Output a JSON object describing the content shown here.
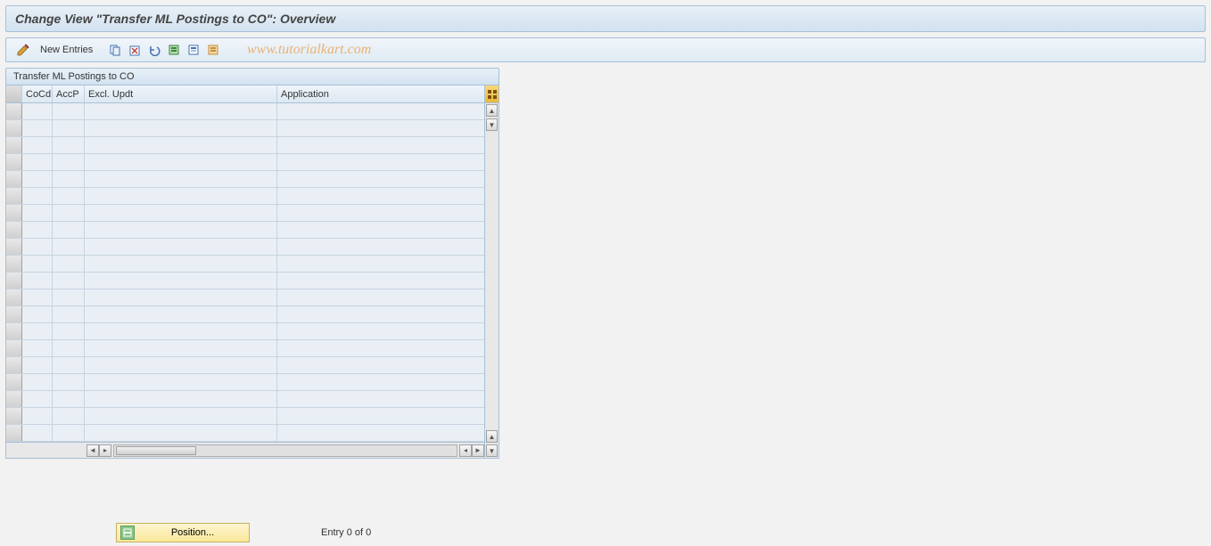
{
  "titlebar": {
    "text": "Change View \"Transfer ML Postings to CO\": Overview"
  },
  "toolbar": {
    "new_entries_label": "New Entries",
    "watermark": "www.tutorialkart.com",
    "icons": {
      "pencil": "pencil-icon",
      "copy": "copy-icon",
      "delete": "delete-icon",
      "undo": "undo-icon",
      "select_all": "select-all-icon",
      "select_block": "select-block-icon",
      "deselect": "deselect-icon"
    }
  },
  "table": {
    "title": "Transfer ML Postings to CO",
    "columns": {
      "cocd": "CoCd",
      "accp": "AccP",
      "excl_updt": "Excl. Updt",
      "application": "Application"
    },
    "col_widths": {
      "sel": 18,
      "cocd": 34,
      "accp": 36,
      "excl": 216,
      "app": 216
    },
    "row_count": 20,
    "rows": [],
    "colors": {
      "header_bg_top": "#f0f5fa",
      "header_bg_bottom": "#dde8f2",
      "cell_bg": "#e9eff5",
      "border": "#c8d4e0"
    }
  },
  "footer": {
    "position_label": "Position...",
    "entry_text": "Entry 0 of 0"
  },
  "style": {
    "accent_border": "#a8c0d8",
    "bg": "#f2f2f2"
  }
}
